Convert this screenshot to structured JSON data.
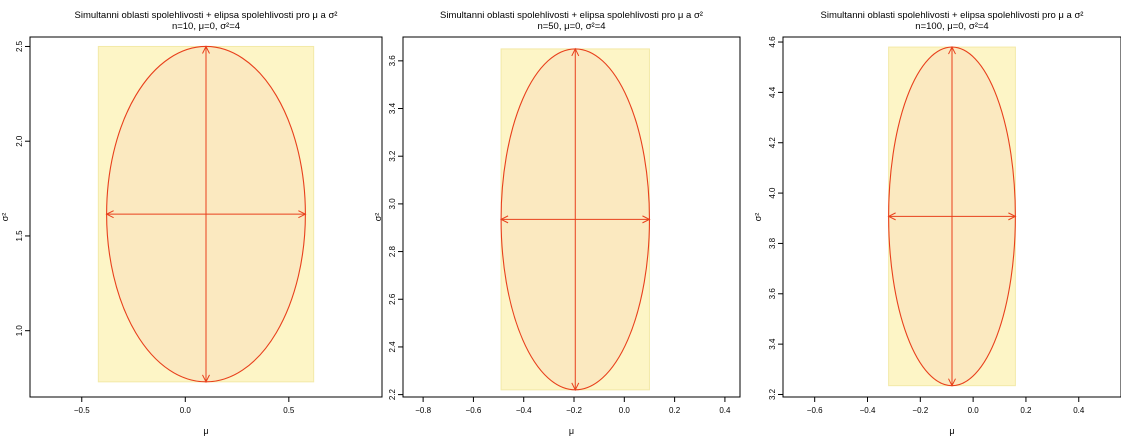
{
  "chart_data": [
    {
      "type": "scatter",
      "title": "Simultanni oblasti spolehlivosti + elipsa spolehlivosti pro μ a σ²",
      "subtitle": "n=10, μ=0, σ²=4",
      "xlabel": "μ",
      "ylabel": "σ²",
      "xlim": [
        -0.75,
        0.95
      ],
      "ylim": [
        0.65,
        2.55
      ],
      "xticks": [
        -0.5,
        0.0,
        0.5
      ],
      "xtick_labels": [
        "−0.5",
        "0.0",
        "0.5"
      ],
      "yticks": [
        1.0,
        1.5,
        2.0,
        2.5
      ],
      "ytick_labels": [
        "1.0",
        "1.5",
        "2.0",
        "2.5"
      ],
      "rect": {
        "mu": [
          -0.42,
          0.62
        ],
        "sigma2": [
          0.73,
          2.5
        ]
      },
      "ellipse": {
        "mu_center": 0.1,
        "sigma2_center": 1.615,
        "mu_halfwidth": 0.48,
        "sigma2_halfheight": 0.885
      }
    },
    {
      "type": "scatter",
      "title": "Simultanni oblasti spolehlivosti + elipsa spolehlivosti pro μ a σ²",
      "subtitle": "n=50, μ=0, σ²=4",
      "xlabel": "μ",
      "ylabel": "σ²",
      "xlim": [
        -0.88,
        0.46
      ],
      "ylim": [
        2.19,
        3.7
      ],
      "xticks": [
        -0.8,
        -0.6,
        -0.4,
        -0.2,
        0.0,
        0.2,
        0.4
      ],
      "xtick_labels": [
        "−0.8",
        "−0.6",
        "−0.4",
        "−0.2",
        "0.0",
        "0.2",
        "0.4"
      ],
      "yticks": [
        2.2,
        2.4,
        2.6,
        2.8,
        3.0,
        3.2,
        3.4,
        3.6
      ],
      "ytick_labels": [
        "2.2",
        "2.4",
        "2.6",
        "2.8",
        "3.0",
        "3.2",
        "3.4",
        "3.6"
      ],
      "rect": {
        "mu": [
          -0.49,
          0.1
        ],
        "sigma2": [
          2.22,
          3.65
        ]
      },
      "ellipse": {
        "mu_center": -0.195,
        "sigma2_center": 2.935,
        "mu_halfwidth": 0.295,
        "sigma2_halfheight": 0.715
      }
    },
    {
      "type": "scatter",
      "title": "Simultanni oblasti spolehlivosti + elipsa spolehlivosti pro μ a σ²",
      "subtitle": "n=100, μ=0, σ²=4",
      "xlabel": "μ",
      "ylabel": "σ²",
      "xlim": [
        -0.72,
        0.56
      ],
      "ylim": [
        3.19,
        4.62
      ],
      "xticks": [
        -0.6,
        -0.4,
        -0.2,
        0.0,
        0.2,
        0.4
      ],
      "xtick_labels": [
        "−0.6",
        "−0.4",
        "−0.2",
        "0.0",
        "0.2",
        "0.4"
      ],
      "yticks": [
        3.2,
        3.4,
        3.6,
        3.8,
        4.0,
        4.2,
        4.4,
        4.6
      ],
      "ytick_labels": [
        "3.2",
        "3.4",
        "3.6",
        "3.8",
        "4.0",
        "4.2",
        "4.4",
        "4.6"
      ],
      "rect": {
        "mu": [
          -0.32,
          0.16
        ],
        "sigma2": [
          3.235,
          4.58
        ]
      },
      "ellipse": {
        "mu_center": -0.08,
        "sigma2_center": 3.9075,
        "mu_halfwidth": 0.24,
        "sigma2_halfheight": 0.6725
      }
    }
  ],
  "colors": {
    "rect_fill": "#fdf5c6",
    "rect_stroke": "#f3e9a8",
    "ellipse_fill": "#fbe9c0",
    "ellipse_stroke": "#e8401c",
    "axis": "#000000"
  }
}
